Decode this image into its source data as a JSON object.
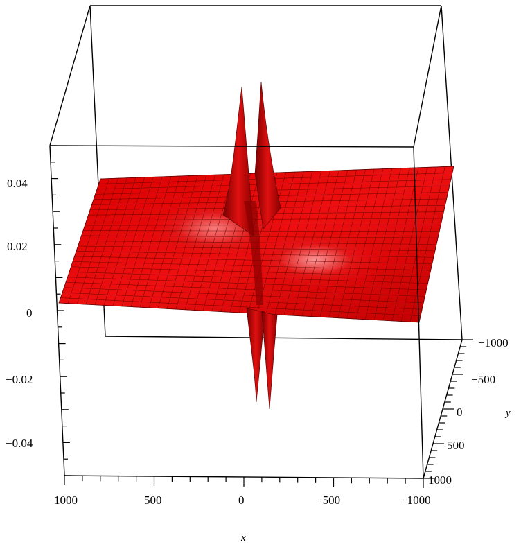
{
  "chart_data": {
    "type": "surface3d",
    "title": "",
    "xlabel": "x",
    "ylabel": "y",
    "zlabel": "",
    "x_range": [
      -1000,
      1000
    ],
    "y_range": [
      -1000,
      1000
    ],
    "z_range": [
      -0.05,
      0.05
    ],
    "x_ticks": [
      "1000",
      "500",
      "0",
      "−500",
      "−1000"
    ],
    "y_ticks": [
      "−1000",
      "−500",
      "0",
      "500",
      "1000"
    ],
    "z_ticks": [
      "0.04",
      "0.02",
      "0",
      "−0.02",
      "−0.04"
    ],
    "surface_color": "#e00000",
    "mesh_color": "#5a0000",
    "baseline_z": 0,
    "features": [
      {
        "kind": "spike",
        "x": 25,
        "y": 0,
        "z_peak": 0.045,
        "z_trough": -0.035
      },
      {
        "kind": "spike",
        "x": -25,
        "y": 0,
        "z_peak": 0.045,
        "z_trough": -0.038
      }
    ]
  }
}
